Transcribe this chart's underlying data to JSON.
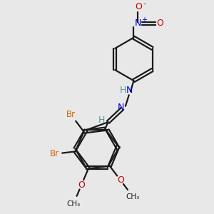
{
  "bg_color": "#e8e8e8",
  "bond_color": "#1a1a1a",
  "nitrogen_color": "#0000cc",
  "oxygen_color": "#cc0000",
  "bromine_color": "#cc6600",
  "hydrogen_color": "#4d9999",
  "line_width": 1.6,
  "fig_size": [
    3.0,
    3.0
  ],
  "dpi": 100,
  "xlim": [
    0,
    10
  ],
  "ylim": [
    0,
    10
  ]
}
